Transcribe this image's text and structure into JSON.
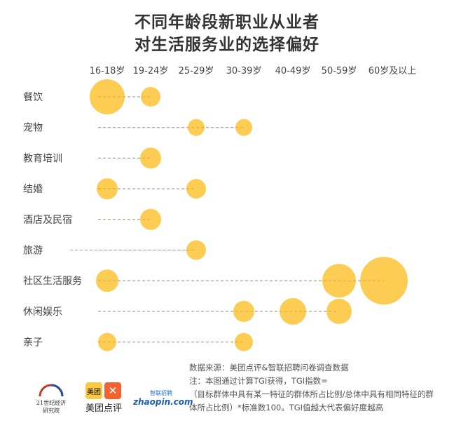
{
  "chart_data": {
    "type": "scatter",
    "title_line1": "不同年龄段新职业从业者",
    "title_line2": "对生活服务业的选择偏好",
    "x_categories": [
      "16-18岁",
      "19-24岁",
      "25-29岁",
      "30-39岁",
      "40-49岁",
      "50-59岁",
      "60岁及以上"
    ],
    "y_categories": [
      "餐饮",
      "宠物",
      "教育培训",
      "结婚",
      "酒店及民宿",
      "旅游",
      "社区生活服务",
      "休闲娱乐",
      "亲子"
    ],
    "bubble_color": "#FDC844",
    "bubbles": [
      {
        "row": "餐饮",
        "col": "16-18岁",
        "relative_size": 25
      },
      {
        "row": "餐饮",
        "col": "19-24岁",
        "relative_size": 14
      },
      {
        "row": "宠物",
        "col": "25-29岁",
        "relative_size": 12
      },
      {
        "row": "宠物",
        "col": "30-39岁",
        "relative_size": 12
      },
      {
        "row": "教育培训",
        "col": "19-24岁",
        "relative_size": 15
      },
      {
        "row": "结婚",
        "col": "16-18岁",
        "relative_size": 15
      },
      {
        "row": "结婚",
        "col": "25-29岁",
        "relative_size": 14
      },
      {
        "row": "酒店及民宿",
        "col": "19-24岁",
        "relative_size": 15
      },
      {
        "row": "旅游",
        "col": "25-29岁",
        "relative_size": 14
      },
      {
        "row": "社区生活服务",
        "col": "16-18岁",
        "relative_size": 16
      },
      {
        "row": "社区生活服务",
        "col": "50-59岁",
        "relative_size": 24
      },
      {
        "row": "社区生活服务",
        "col": "60岁及以上",
        "relative_size": 34
      },
      {
        "row": "休闲娱乐",
        "col": "30-39岁",
        "relative_size": 15
      },
      {
        "row": "休闲娱乐",
        "col": "40-49岁",
        "relative_size": 19
      },
      {
        "row": "休闲娱乐",
        "col": "50-59岁",
        "relative_size": 18
      },
      {
        "row": "亲子",
        "col": "16-18岁",
        "relative_size": 13
      },
      {
        "row": "亲子",
        "col": "30-39岁",
        "relative_size": 13
      }
    ]
  },
  "notes": [
    "数据来源：美团点评&智联招聘问卷调查数据",
    "注：本图通过计算TGI获得，TGI指数=",
    "（目标群体中具有某一特征的群体所占比例/总体中具有相同特征的群体所占比例）*标准数100。TGI值越大代表偏好度越高"
  ],
  "logos": {
    "l1": "21世纪经济研究院",
    "l2": "美团点评",
    "l2_badge": "美团",
    "l3": "zhaopin.com",
    "l3_cn": "智联招聘"
  }
}
